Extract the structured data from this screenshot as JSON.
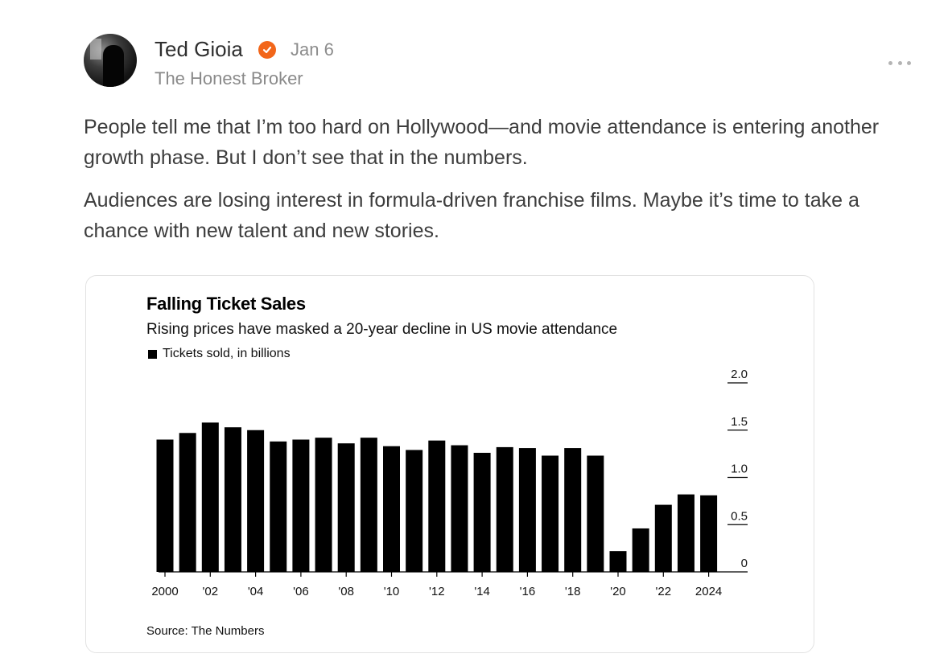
{
  "post": {
    "author": "Ted Gioia",
    "date": "Jan 6",
    "publication": "The Honest Broker",
    "paragraphs": [
      "People tell me that I’m too hard on Hollywood—and movie attendance is entering another growth phase. But I don’t see that in the numbers.",
      "Audiences are losing interest in formula-driven franchise films. Maybe it’s time to take a chance with new talent and new stories."
    ],
    "icons": {
      "verified": "verified-badge-icon",
      "more": "more-options-icon"
    },
    "colors": {
      "verified_badge": "#f2661a",
      "bars": "#000000"
    }
  },
  "chart_data": {
    "type": "bar",
    "title": "Falling Ticket Sales",
    "subtitle": "Rising prices have masked a 20-year decline in US movie attendance",
    "legend": "Tickets sold, in billions",
    "source": "Source: The Numbers",
    "categories": [
      "2000",
      "2001",
      "2002",
      "2003",
      "2004",
      "2005",
      "2006",
      "2007",
      "2008",
      "2009",
      "2010",
      "2011",
      "2012",
      "2013",
      "2014",
      "2015",
      "2016",
      "2017",
      "2018",
      "2019",
      "2020",
      "2021",
      "2022",
      "2023",
      "2024"
    ],
    "values": [
      1.4,
      1.47,
      1.58,
      1.53,
      1.5,
      1.38,
      1.4,
      1.42,
      1.36,
      1.42,
      1.33,
      1.29,
      1.39,
      1.34,
      1.26,
      1.32,
      1.31,
      1.23,
      1.31,
      1.23,
      0.22,
      0.46,
      0.71,
      0.82,
      0.81
    ],
    "x_tick_labels": [
      "2000",
      "'02",
      "'04",
      "'06",
      "'08",
      "'10",
      "'12",
      "'14",
      "'16",
      "'18",
      "'20",
      "'22",
      "2024"
    ],
    "x_tick_categories": [
      "2000",
      "2002",
      "2004",
      "2006",
      "2008",
      "2010",
      "2012",
      "2014",
      "2016",
      "2018",
      "2020",
      "2022",
      "2024"
    ],
    "y_ticks": [
      0,
      0.5,
      1.0,
      1.5,
      2.0
    ],
    "y_tick_labels": [
      "0",
      "0.5",
      "1.0",
      "1.5",
      "2.0"
    ],
    "ylim": [
      0,
      2.0
    ],
    "y_axis_position": "right",
    "grid": false,
    "legend_placement": "top-left"
  }
}
